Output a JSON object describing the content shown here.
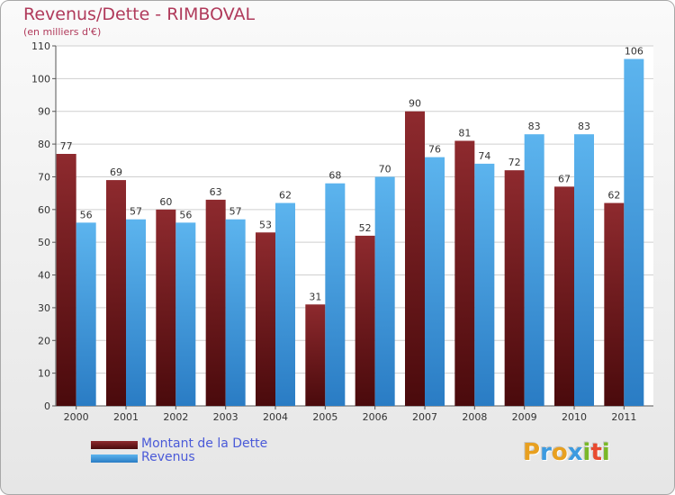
{
  "title": "Revenus/Dette - RIMBOVAL",
  "subtitle": "(en milliers d'€)",
  "colors": {
    "dette": "#7a1e22",
    "revenus": "#4ba8e8",
    "title": "#b03a5b",
    "legend_text": "#4a5ad8"
  },
  "legend": [
    {
      "label": "Montant de la Dette",
      "color": "#7a1e22"
    },
    {
      "label": "Revenus",
      "color": "#4ba8e8"
    }
  ],
  "logo": {
    "letters": [
      "P",
      "r",
      "o",
      "x",
      "i",
      "t",
      "i"
    ],
    "colors": [
      "#e8a020",
      "#3d9be0",
      "#e8a020",
      "#3d9be0",
      "#7ab828",
      "#e84a30",
      "#7ab828"
    ]
  },
  "chart_data": {
    "type": "bar",
    "categories": [
      "2000",
      "2001",
      "2002",
      "2003",
      "2004",
      "2005",
      "2006",
      "2007",
      "2008",
      "2009",
      "2010",
      "2011"
    ],
    "series": [
      {
        "name": "Montant de la Dette",
        "values": [
          77,
          69,
          60,
          63,
          53,
          31,
          52,
          90,
          81,
          72,
          67,
          62
        ]
      },
      {
        "name": "Revenus",
        "values": [
          56,
          57,
          56,
          57,
          62,
          68,
          70,
          76,
          74,
          83,
          83,
          106
        ]
      }
    ],
    "title": "Revenus/Dette - RIMBOVAL",
    "subtitle": "(en milliers d'€)",
    "ylim": [
      0,
      110
    ],
    "yticks": [
      0,
      10,
      20,
      30,
      40,
      50,
      60,
      70,
      80,
      90,
      100,
      110
    ],
    "grid": true,
    "legend_position": "bottom-left"
  }
}
